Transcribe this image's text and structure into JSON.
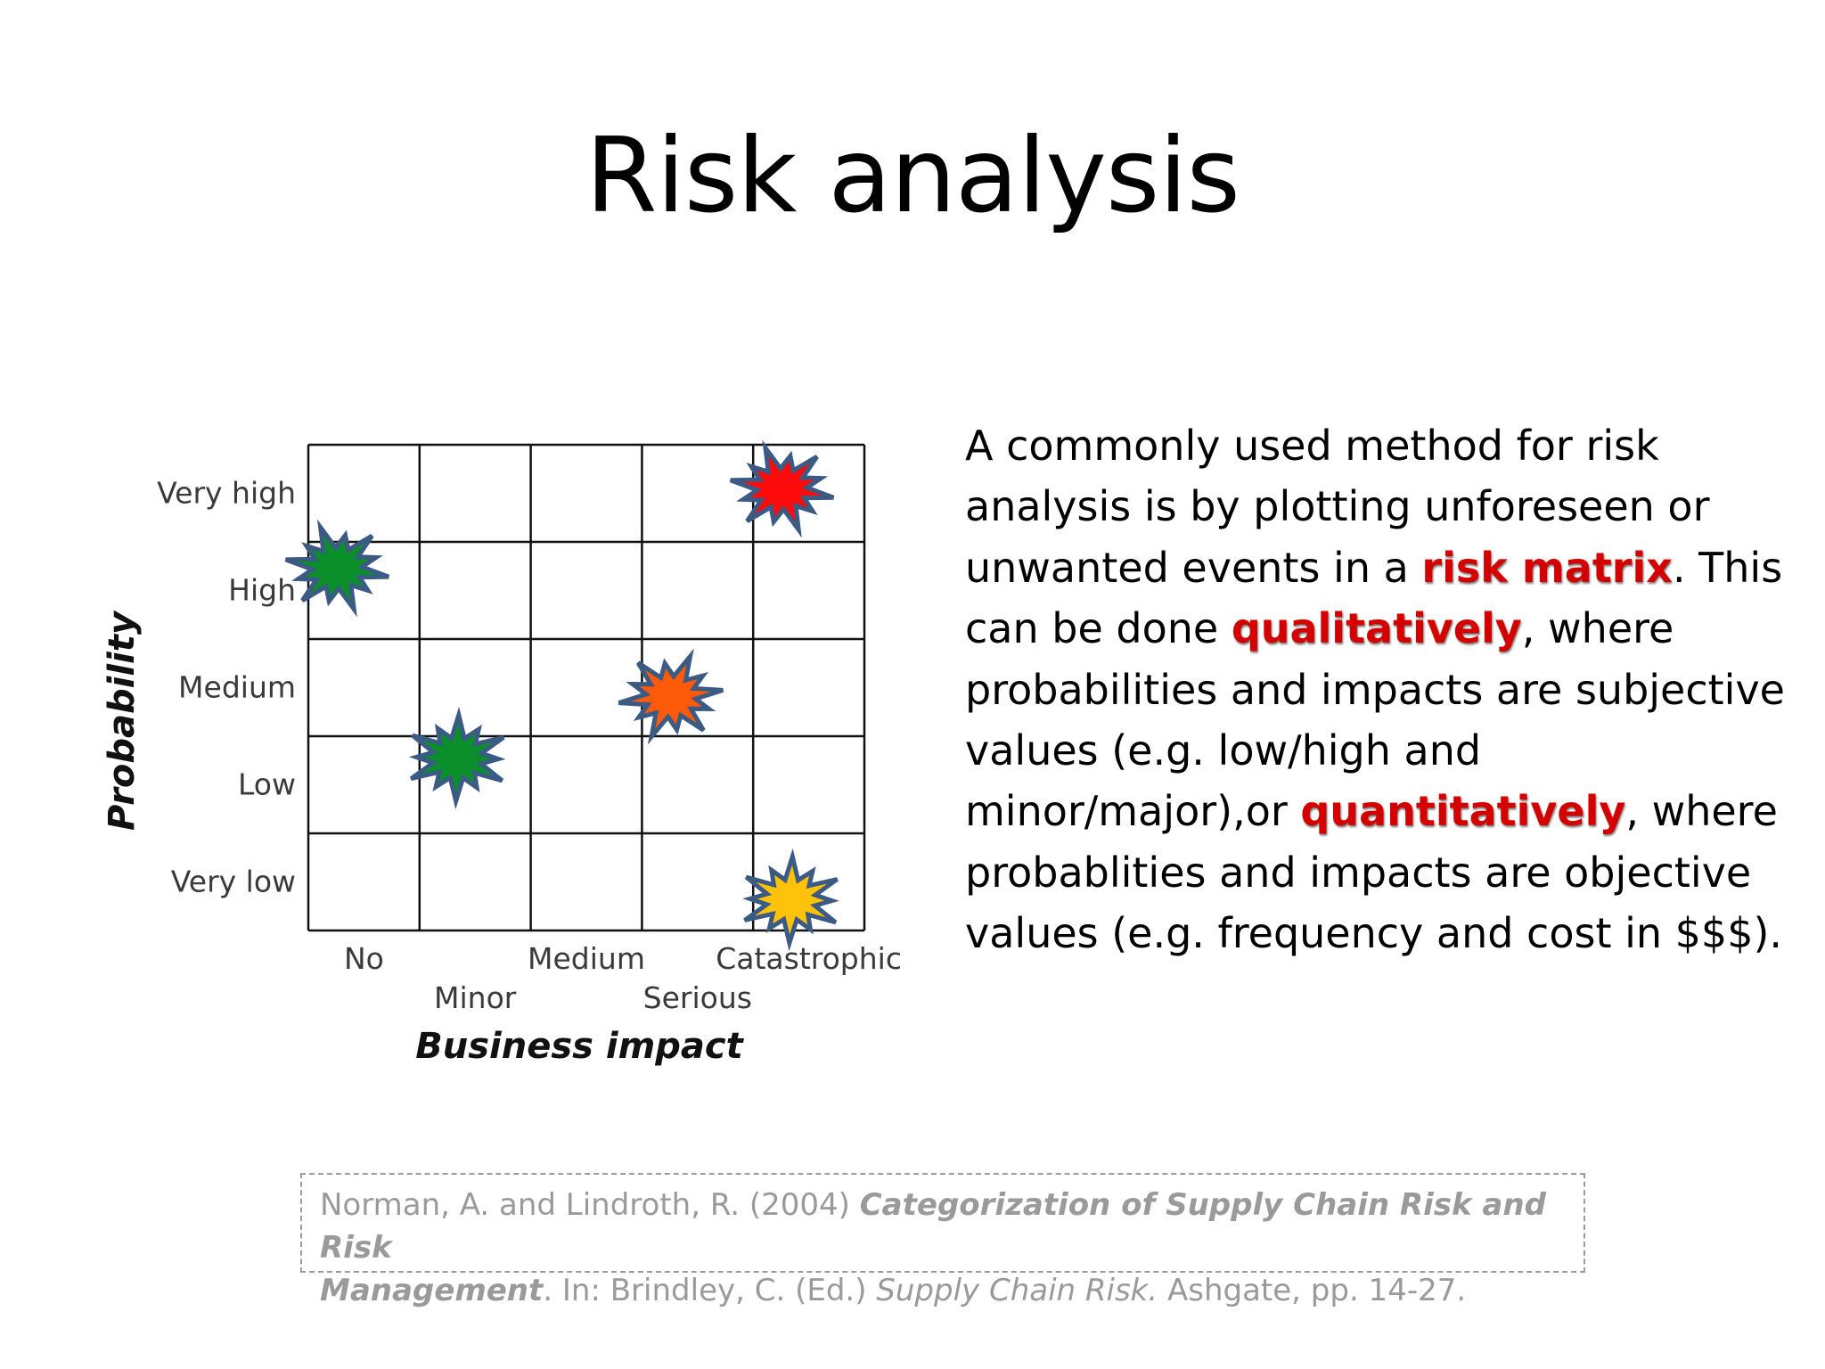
{
  "title": "Risk analysis",
  "matrix": {
    "y_axis_label": "Probability",
    "x_axis_label": "Business impact",
    "y_levels": [
      "Very high",
      "High",
      "Medium",
      "Low",
      "Very low"
    ],
    "x_levels": [
      "No",
      "Minor",
      "Medium",
      "Serious",
      "Catastrophic"
    ],
    "events": [
      {
        "impact": "No",
        "probability": "High",
        "color": "#0a8f2a",
        "icon": "burst-icon"
      },
      {
        "impact": "Minor",
        "probability": "Low",
        "color": "#0a8f2a",
        "icon": "burst-icon"
      },
      {
        "impact": "Serious",
        "probability": "Medium",
        "color": "#ff5a0a",
        "icon": "burst-icon"
      },
      {
        "impact": "Catastrophic",
        "probability": "Very high",
        "color": "#ff0a0a",
        "icon": "burst-icon"
      },
      {
        "impact": "Catastrophic",
        "probability": "Very low",
        "color": "#ffc20a",
        "icon": "burst-icon"
      }
    ],
    "burst_outline_color": "#3b5a84"
  },
  "body": {
    "t1": "A commonly used method for risk analysis is by plotting unforeseen or unwanted events in a ",
    "k1": "risk matrix",
    "t2": ". This can be done ",
    "k2": "qualitatively",
    "t3": ", where probabilities and impacts are subjective values (e.g. low/high and minor/major),or ",
    "k3": "quantitatively",
    "t4": ", where probablities and impacts are objective values (e.g. frequency and cost in $$$).",
    "highlight_color": "#d40000"
  },
  "citation": {
    "authors": "Norman, A. and Lindroth, R. (2004) ",
    "title_part1": "Categorization of Supply Chain Risk and Risk",
    "title_part2": "Management",
    "after_title": ". In: Brindley, C. (Ed.) ",
    "book": "Supply Chain Risk.",
    "tail": " Ashgate, pp. 14-27."
  }
}
